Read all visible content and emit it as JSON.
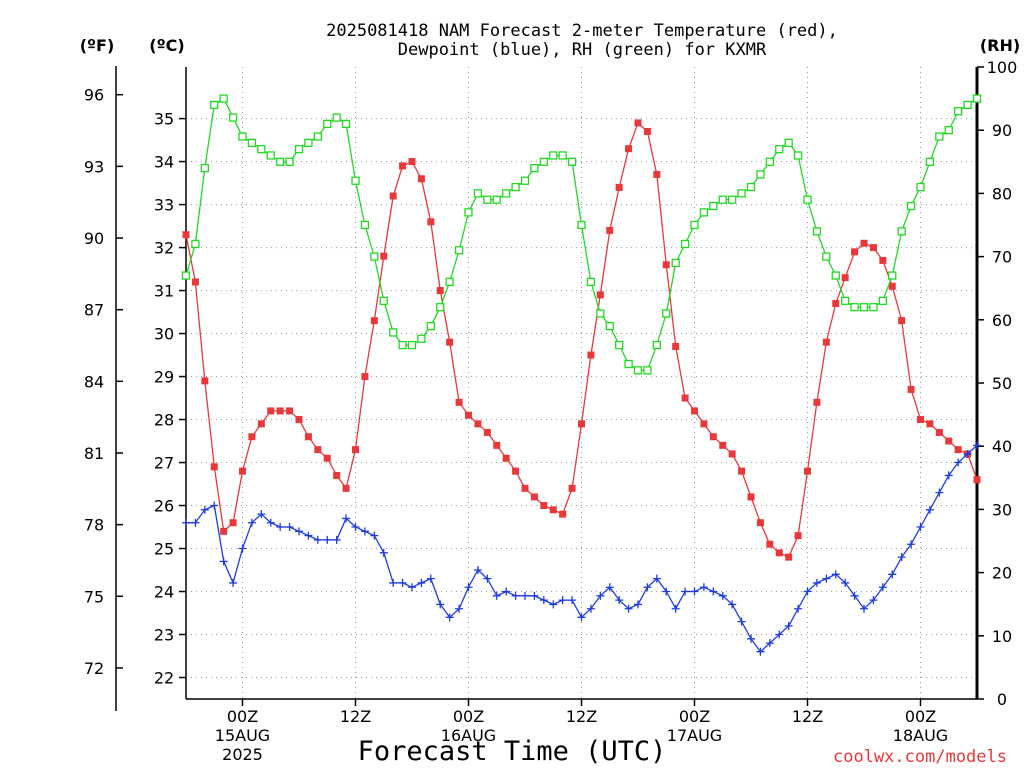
{
  "chart_data": {
    "type": "line",
    "title_line1": "2025081418 NAM Forecast 2-meter Temperature (red),",
    "title_line2": "Dewpoint (blue), RH (green) for KXMR",
    "unit_f": "(ºF)",
    "unit_c": "(ºC)",
    "unit_rh": "(RH)",
    "xlabel": "Forecast Time (UTC)",
    "credit": "coolwx.com/models",
    "x_units": "forecast hour from 2025-08-14 18Z",
    "xlim": [
      0,
      84
    ],
    "ylim_c": [
      21.5,
      36.2
    ],
    "ylim_rh": [
      0,
      100
    ],
    "yticks_f": [
      "96",
      "93",
      "90",
      "87",
      "84",
      "81",
      "78",
      "75",
      "72"
    ],
    "yticks_c": [
      "35",
      "34",
      "33",
      "32",
      "31",
      "30",
      "29",
      "28",
      "27",
      "26",
      "25",
      "24",
      "23",
      "22"
    ],
    "yticks_rh": [
      "100",
      "90",
      "80",
      "70",
      "60",
      "50",
      "40",
      "30",
      "20",
      "10",
      "0"
    ],
    "xticks": [
      {
        "hour": 6,
        "label": "00Z",
        "day": "15AUG",
        "year": "2025"
      },
      {
        "hour": 18,
        "label": "12Z",
        "day": "",
        "year": ""
      },
      {
        "hour": 30,
        "label": "00Z",
        "day": "16AUG",
        "year": ""
      },
      {
        "hour": 42,
        "label": "12Z",
        "day": "",
        "year": ""
      },
      {
        "hour": 54,
        "label": "00Z",
        "day": "17AUG",
        "year": ""
      },
      {
        "hour": 66,
        "label": "12Z",
        "day": "",
        "year": ""
      },
      {
        "hour": 78,
        "label": "00Z",
        "day": "18AUG",
        "year": ""
      }
    ],
    "grid": true,
    "series": [
      {
        "name": "Temperature",
        "color": "#e8383b",
        "marker": "filled-square",
        "axis": "celsius",
        "x": [
          0,
          1,
          2,
          3,
          4,
          5,
          6,
          7,
          8,
          9,
          10,
          11,
          12,
          13,
          14,
          15,
          16,
          17,
          18,
          19,
          20,
          21,
          22,
          23,
          24,
          25,
          26,
          27,
          28,
          29,
          30,
          31,
          32,
          33,
          34,
          35,
          36,
          37,
          38,
          39,
          40,
          41,
          42,
          43,
          44,
          45,
          46,
          47,
          48,
          49,
          50,
          51,
          52,
          53,
          54,
          55,
          56,
          57,
          58,
          59,
          60,
          61,
          62,
          63,
          64,
          65,
          66,
          67,
          68,
          69,
          70,
          71,
          72,
          73,
          74,
          75,
          76,
          77,
          78,
          79,
          80,
          81,
          82,
          83,
          84
        ],
        "values": [
          32.3,
          31.2,
          28.9,
          26.9,
          25.4,
          25.6,
          26.8,
          27.6,
          27.9,
          28.2,
          28.2,
          28.2,
          28.0,
          27.6,
          27.3,
          27.1,
          26.7,
          26.4,
          27.3,
          29.0,
          30.3,
          31.8,
          33.2,
          33.9,
          34.0,
          33.6,
          32.6,
          31.0,
          29.8,
          28.4,
          28.1,
          27.9,
          27.7,
          27.4,
          27.1,
          26.8,
          26.4,
          26.2,
          26.0,
          25.9,
          25.8,
          26.4,
          27.9,
          29.5,
          30.9,
          32.4,
          33.4,
          34.3,
          34.9,
          34.7,
          33.7,
          31.6,
          29.7,
          28.5,
          28.2,
          27.9,
          27.6,
          27.4,
          27.2,
          26.8,
          26.2,
          25.6,
          25.1,
          24.9,
          24.8,
          25.3,
          26.8,
          28.4,
          29.8,
          30.7,
          31.3,
          31.9,
          32.1,
          32.0,
          31.7,
          31.1,
          30.3,
          28.7,
          28.0,
          27.9,
          27.7,
          27.5,
          27.3,
          27.2,
          26.6
        ]
      },
      {
        "name": "Dewpoint",
        "color": "#1f3ddf",
        "marker": "plus",
        "axis": "celsius",
        "x": [
          0,
          1,
          2,
          3,
          4,
          5,
          6,
          7,
          8,
          9,
          10,
          11,
          12,
          13,
          14,
          15,
          16,
          17,
          18,
          19,
          20,
          21,
          22,
          23,
          24,
          25,
          26,
          27,
          28,
          29,
          30,
          31,
          32,
          33,
          34,
          35,
          36,
          37,
          38,
          39,
          40,
          41,
          42,
          43,
          44,
          45,
          46,
          47,
          48,
          49,
          50,
          51,
          52,
          53,
          54,
          55,
          56,
          57,
          58,
          59,
          60,
          61,
          62,
          63,
          64,
          65,
          66,
          67,
          68,
          69,
          70,
          71,
          72,
          73,
          74,
          75,
          76,
          77,
          78,
          79,
          80,
          81,
          82,
          83,
          84
        ],
        "values": [
          25.6,
          25.6,
          25.9,
          26.0,
          24.7,
          24.2,
          25.0,
          25.6,
          25.8,
          25.6,
          25.5,
          25.5,
          25.4,
          25.3,
          25.2,
          25.2,
          25.2,
          25.7,
          25.5,
          25.4,
          25.3,
          24.9,
          24.2,
          24.2,
          24.1,
          24.2,
          24.3,
          23.7,
          23.4,
          23.6,
          24.1,
          24.5,
          24.3,
          23.9,
          24.0,
          23.9,
          23.9,
          23.9,
          23.8,
          23.7,
          23.8,
          23.8,
          23.4,
          23.6,
          23.9,
          24.1,
          23.8,
          23.6,
          23.7,
          24.1,
          24.3,
          24.0,
          23.6,
          24.0,
          24.0,
          24.1,
          24.0,
          23.9,
          23.7,
          23.3,
          22.9,
          22.6,
          22.8,
          23.0,
          23.2,
          23.6,
          24.0,
          24.2,
          24.3,
          24.4,
          24.2,
          23.9,
          23.6,
          23.8,
          24.1,
          24.4,
          24.8,
          25.1,
          25.5,
          25.9,
          26.3,
          26.7,
          27.0,
          27.2,
          27.4
        ]
      },
      {
        "name": "RH",
        "color": "#22d922",
        "marker": "open-square",
        "axis": "rh",
        "x": [
          0,
          1,
          2,
          3,
          4,
          5,
          6,
          7,
          8,
          9,
          10,
          11,
          12,
          13,
          14,
          15,
          16,
          17,
          18,
          19,
          20,
          21,
          22,
          23,
          24,
          25,
          26,
          27,
          28,
          29,
          30,
          31,
          32,
          33,
          34,
          35,
          36,
          37,
          38,
          39,
          40,
          41,
          42,
          43,
          44,
          45,
          46,
          47,
          48,
          49,
          50,
          51,
          52,
          53,
          54,
          55,
          56,
          57,
          58,
          59,
          60,
          61,
          62,
          63,
          64,
          65,
          66,
          67,
          68,
          69,
          70,
          71,
          72,
          73,
          74,
          75,
          76,
          77,
          78,
          79,
          80,
          81,
          82,
          83,
          84
        ],
        "values": [
          67,
          72,
          84,
          94,
          95,
          92,
          89,
          88,
          87,
          86,
          85,
          85,
          87,
          88,
          89,
          91,
          92,
          91,
          82,
          75,
          70,
          63,
          58,
          56,
          56,
          57,
          59,
          62,
          66,
          71,
          77,
          80,
          79,
          79,
          80,
          81,
          82,
          84,
          85,
          86,
          86,
          85,
          75,
          66,
          61,
          59,
          56,
          53,
          52,
          52,
          56,
          61,
          69,
          72,
          75,
          77,
          78,
          79,
          79,
          80,
          81,
          83,
          85,
          87,
          88,
          86,
          79,
          74,
          70,
          67,
          63,
          62,
          62,
          62,
          63,
          67,
          74,
          78,
          81,
          85,
          89,
          90,
          93,
          94,
          95
        ]
      }
    ]
  }
}
